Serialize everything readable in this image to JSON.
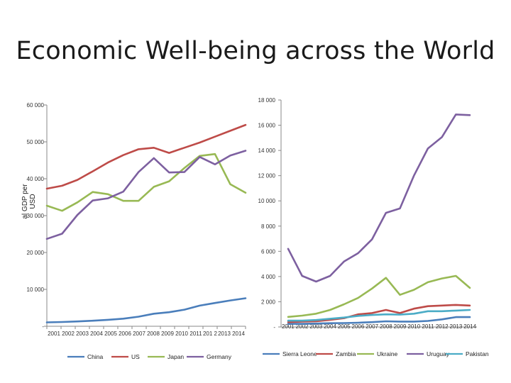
{
  "slide": {
    "title": "Economic Well-being across the World"
  },
  "chart_data": [
    {
      "type": "line",
      "title": "",
      "ylabel_lines": [
        "al GDP per",
        "USD"
      ],
      "xlabel": "",
      "ylim": [
        0,
        60000
      ],
      "yticks": [
        0,
        10000,
        20000,
        30000,
        40000,
        50000,
        60000
      ],
      "ytick_labels": [
        "-",
        "10 000",
        "20 000",
        "30 000",
        "40 000",
        "50 000",
        "60 000"
      ],
      "categories": [
        "2001",
        "2002",
        "2003",
        "2004",
        "2005",
        "2006",
        "2007",
        "2008",
        "2009",
        "2010",
        "2011",
        "201 2",
        "2013",
        "2014"
      ],
      "legend_position": "bottom",
      "series": [
        {
          "name": "China",
          "color": "#4a7ebb",
          "values": [
            1050,
            1150,
            1300,
            1500,
            1750,
            2050,
            2600,
            3400,
            3800,
            4500,
            5600,
            6300,
            7000,
            7600
          ]
        },
        {
          "name": "US",
          "color": "#be4b48",
          "values": [
            37300,
            38100,
            39700,
            42000,
            44400,
            46400,
            48000,
            48400,
            47000,
            48400,
            49800,
            51400,
            53000,
            54600
          ]
        },
        {
          "name": "Japan",
          "color": "#98b954",
          "values": [
            32700,
            31300,
            33600,
            36400,
            35800,
            34000,
            34000,
            37800,
            39300,
            42900,
            46200,
            46700,
            38500,
            36200
          ]
        },
        {
          "name": "Germany",
          "color": "#7d60a0",
          "values": [
            23700,
            25100,
            30200,
            34100,
            34700,
            36500,
            41800,
            45600,
            41700,
            41800,
            45900,
            43900,
            46300,
            47600
          ]
        }
      ]
    },
    {
      "type": "line",
      "title": "",
      "xlabel": "",
      "ylabel": "",
      "ylim": [
        0,
        18000
      ],
      "yticks": [
        0,
        2000,
        4000,
        6000,
        8000,
        10000,
        12000,
        14000,
        16000,
        18000
      ],
      "ytick_labels": [
        "-",
        "2 000",
        "4 000",
        "6 000",
        "8 000",
        "10 000",
        "12 000",
        "14 000",
        "16 000",
        "18 000"
      ],
      "categories": [
        "2001",
        "2002",
        "2003",
        "2004",
        "2005",
        "2006",
        "2007",
        "2008",
        "2009",
        "2010",
        "2011",
        "2012",
        "2013",
        "2014"
      ],
      "legend_position": "bottom",
      "series": [
        {
          "name": "Sierra Leone",
          "color": "#4a7ebb",
          "values": [
            250,
            250,
            270,
            300,
            310,
            340,
            380,
            450,
            430,
            430,
            480,
            600,
            780,
            780
          ]
        },
        {
          "name": "Zambia",
          "color": "#be4b48",
          "values": [
            380,
            420,
            450,
            560,
            700,
            1000,
            1100,
            1350,
            1100,
            1450,
            1650,
            1700,
            1750,
            1700
          ]
        },
        {
          "name": "Ukraine",
          "color": "#98b954",
          "values": [
            800,
            900,
            1050,
            1350,
            1800,
            2300,
            3050,
            3900,
            2550,
            2950,
            3550,
            3850,
            4050,
            3100
          ]
        },
        {
          "name": "Uruguay",
          "color": "#7d60a0",
          "values": [
            6200,
            4050,
            3600,
            4050,
            5200,
            5850,
            6950,
            9050,
            9400,
            12000,
            14150,
            15050,
            16850,
            16800
          ]
        },
        {
          "name": "Pakistan",
          "color": "#4bacc6",
          "values": [
            500,
            500,
            550,
            650,
            750,
            880,
            950,
            1000,
            980,
            1050,
            1250,
            1250,
            1300,
            1350
          ]
        }
      ]
    }
  ]
}
